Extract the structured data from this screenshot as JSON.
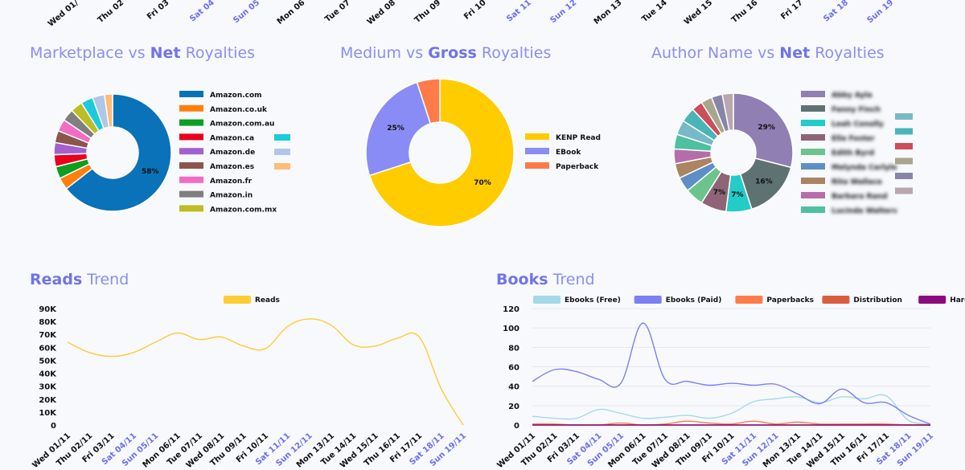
{
  "titles": {
    "marketplace": {
      "pre": "Marketplace vs ",
      "bold": "Net",
      "post": " Royalties"
    },
    "medium": {
      "pre": "Medium vs ",
      "bold": "Gross",
      "post": " Royalties"
    },
    "author": {
      "pre": "Author Name vs ",
      "bold": "Net",
      "post": " Royalties"
    },
    "reads": {
      "bold": "Reads",
      "post": " Trend"
    },
    "books": {
      "bold": "Books",
      "post": " Trend"
    }
  },
  "top_ticks": [
    "Wed 01/",
    "Thu 02",
    "Fri 03",
    "Sat 04",
    "Sun 05",
    "Mon 06",
    "Tue 07",
    "Wed 08",
    "Thu 09",
    "Fri 10",
    "Sat 11",
    "Sun 12",
    "Mon 13",
    "Tue 14",
    "Wed 15",
    "Thu 16",
    "Fri 17",
    "Sat 18",
    "Sun 19"
  ],
  "chart_data": [
    {
      "type": "pie",
      "labels": [
        "Amazon.com",
        "Amazon.co.uk",
        "Amazon.com.au",
        "Amazon.ca",
        "Amazon.de",
        "Amazon.es",
        "Amazon.fr",
        "Amazon.in",
        "Amazon.com.mx",
        "",
        "",
        ""
      ],
      "values": [
        58,
        3,
        3,
        3,
        3,
        3,
        3,
        3,
        3,
        3,
        3,
        2
      ],
      "value_labels": [
        "58%",
        "",
        "",
        "",
        "",
        "",
        "",
        "",
        "",
        "",
        "",
        ""
      ],
      "colors": [
        "#0a72b8",
        "#ff7f0e",
        "#0e9e20",
        "#e8001c",
        "#a261cc",
        "#8c564b",
        "#f36cc4",
        "#7f7f7f",
        "#bcbd22",
        "#1bcadc",
        "#aec7e8",
        "#ffbb78"
      ]
    },
    {
      "type": "pie",
      "labels": [
        "KENP Read",
        "EBook",
        "Paperback"
      ],
      "values": [
        70,
        25,
        5
      ],
      "value_labels": [
        "70%",
        "25%",
        ""
      ],
      "colors": [
        "#ffcc00",
        "#8a8cf5",
        "#ff7b4a"
      ]
    },
    {
      "type": "pie",
      "labels": [
        "Abby Ayla",
        "Fanny Finch",
        "Leah Conolly",
        "Ella Foster",
        "Edith Byrd",
        "Melynda Carlyle",
        "Rita Wallace",
        "Barbara Rand",
        "Lucinda Walters",
        "",
        "",
        "",
        "",
        "",
        ""
      ],
      "values": [
        29,
        16,
        7,
        7,
        5,
        4,
        4,
        4,
        4,
        4,
        4,
        3,
        3,
        3,
        3
      ],
      "value_labels": [
        "29%",
        "16%",
        "7%",
        "7%",
        "",
        "",
        "",
        "",
        "",
        "",
        "",
        "",
        "",
        "",
        ""
      ],
      "colors": [
        "#8f7fb3",
        "#5e7371",
        "#22ccc8",
        "#8f6476",
        "#6cc48c",
        "#5e8ec6",
        "#a98561",
        "#b46da8",
        "#4ec0a0",
        "#77b9c6",
        "#4ab5b7",
        "#cc4d5c",
        "#a8a68c",
        "#8886a8",
        "#b8a7ad"
      ]
    },
    {
      "type": "line",
      "x": [
        "Wed 01/11",
        "Thu 02/11",
        "Fri 03/11",
        "Sat 04/11",
        "Sun 05/11",
        "Mon 06/11",
        "Tue 07/11",
        "Wed 08/11",
        "Thu 09/11",
        "Fri 10/11",
        "Sat 11/11",
        "Sun 12/11",
        "Mon 13/11",
        "Tue 14/11",
        "Wed 15/11",
        "Thu 16/11",
        "Fri 17/11",
        "Sat 18/11",
        "Sun 19/11"
      ],
      "series": [
        {
          "name": "Reads",
          "color": "#ffcc33",
          "values": [
            64000,
            56000,
            53000,
            56000,
            64000,
            71000,
            66000,
            68000,
            61000,
            59000,
            76000,
            82000,
            77000,
            62000,
            61000,
            67000,
            68000,
            28000,
            0
          ]
        }
      ],
      "yticks": [
        "90K",
        "80K",
        "70K",
        "60K",
        "50K",
        "40K",
        "30K",
        "20K",
        "10K",
        "0"
      ],
      "ylim": [
        0,
        90000
      ]
    },
    {
      "type": "line",
      "x": [
        "Wed 01/11",
        "Thu 02/11",
        "Fri 03/11",
        "Sat 04/11",
        "Sun 05/11",
        "Mon 06/11",
        "Tue 07/11",
        "Wed 08/11",
        "Thu 09/11",
        "Fri 10/11",
        "Sat 11/11",
        "Sun 12/11",
        "Mon 13/11",
        "Tue 14/11",
        "Wed 15/11",
        "Thu 16/11",
        "Fri 17/11",
        "Sat 18/11",
        "Sun 19/11"
      ],
      "series": [
        {
          "name": "Ebooks (Free)",
          "color": "#a3d9e8",
          "values": [
            9,
            7,
            7,
            16,
            12,
            7,
            8,
            10,
            7,
            12,
            24,
            27,
            29,
            23,
            29,
            27,
            30,
            5,
            1
          ]
        },
        {
          "name": "Ebooks (Paid)",
          "color": "#7c80f0",
          "values": [
            45,
            57,
            55,
            47,
            43,
            105,
            47,
            45,
            41,
            43,
            41,
            42,
            32,
            22,
            37,
            23,
            23,
            10,
            1
          ]
        },
        {
          "name": "Paperbacks",
          "color": "#ff7b4a",
          "values": [
            1,
            1,
            0,
            0,
            2,
            0,
            1,
            4,
            2,
            1,
            4,
            1,
            3,
            1,
            1,
            1,
            1,
            0,
            0
          ]
        },
        {
          "name": "Distribution",
          "color": "#d95e40",
          "values": [
            0,
            0,
            0,
            0,
            0,
            0,
            0,
            0,
            0,
            0,
            0,
            0,
            0,
            0,
            0,
            0,
            0,
            0,
            0
          ]
        },
        {
          "name": "Hardcovers",
          "color": "#8b0a7e",
          "values": [
            0,
            0,
            0,
            0,
            0,
            0,
            0,
            0,
            0,
            0,
            0,
            0,
            0,
            0,
            0,
            0,
            0,
            0,
            0
          ]
        }
      ],
      "yticks": [
        "120",
        "100",
        "80",
        "60",
        "40",
        "20",
        "0"
      ],
      "ylim": [
        0,
        120
      ]
    }
  ]
}
